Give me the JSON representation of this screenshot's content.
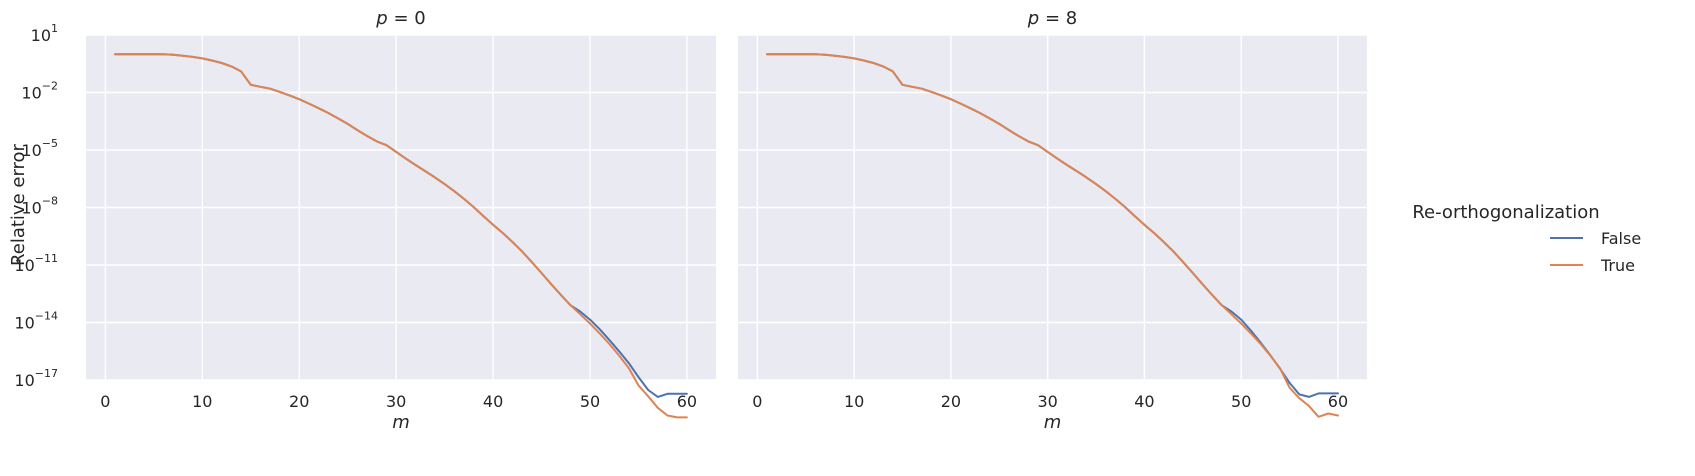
{
  "chart_data": {
    "type": "line",
    "scale_y": "log",
    "grid": true,
    "legend": {
      "title": "Re-orthogonalization",
      "placement": "right",
      "entries": [
        {
          "label": "False",
          "color": "#4c72b0"
        },
        {
          "label": "True",
          "color": "#dd8452"
        }
      ]
    },
    "ylabel": "Relative error",
    "xlabel": "m",
    "xlim": [
      -2,
      63
    ],
    "ylim_exp": [
      -17,
      1
    ],
    "x_ticks": [
      0,
      10,
      20,
      30,
      40,
      50,
      60
    ],
    "y_ticks_exp": [
      1,
      -2,
      -5,
      -8,
      -11,
      -14,
      -17
    ],
    "x": [
      1,
      2,
      3,
      4,
      5,
      6,
      7,
      8,
      9,
      10,
      11,
      12,
      13,
      14,
      15,
      16,
      17,
      18,
      19,
      20,
      21,
      22,
      23,
      24,
      25,
      26,
      27,
      28,
      29,
      30,
      31,
      32,
      33,
      34,
      35,
      36,
      37,
      38,
      39,
      40,
      41,
      42,
      43,
      44,
      45,
      46,
      47,
      48,
      49,
      50,
      51,
      52,
      53,
      54,
      55,
      56,
      57,
      58,
      59,
      60
    ],
    "panels": [
      {
        "title_var": "p",
        "title_value": "= 0",
        "series": [
          {
            "name": "False",
            "log10_values": [
              0,
              0,
              0,
              0,
              0,
              0,
              -0.03,
              -0.08,
              -0.14,
              -0.22,
              -0.33,
              -0.46,
              -0.64,
              -0.9,
              -1.6,
              -1.7,
              -1.8,
              -1.97,
              -2.15,
              -2.35,
              -2.58,
              -2.82,
              -3.07,
              -3.35,
              -3.64,
              -3.96,
              -4.27,
              -4.55,
              -4.75,
              -5.1,
              -5.45,
              -5.78,
              -6.1,
              -6.43,
              -6.78,
              -7.15,
              -7.55,
              -7.98,
              -8.45,
              -8.9,
              -9.33,
              -9.8,
              -10.3,
              -10.85,
              -11.42,
              -12.0,
              -12.56,
              -13.1,
              -13.43,
              -13.85,
              -14.35,
              -14.92,
              -15.5,
              -16.12,
              -16.85,
              -17.52,
              -17.88,
              -17.72,
              -17.72,
              -17.72
            ]
          },
          {
            "name": "True",
            "log10_values": [
              0,
              0,
              0,
              0,
              0,
              0,
              -0.03,
              -0.08,
              -0.14,
              -0.22,
              -0.33,
              -0.46,
              -0.64,
              -0.9,
              -1.6,
              -1.7,
              -1.8,
              -1.97,
              -2.15,
              -2.35,
              -2.58,
              -2.82,
              -3.07,
              -3.35,
              -3.64,
              -3.96,
              -4.27,
              -4.55,
              -4.75,
              -5.1,
              -5.45,
              -5.78,
              -6.1,
              -6.43,
              -6.78,
              -7.15,
              -7.55,
              -7.98,
              -8.45,
              -8.9,
              -9.33,
              -9.8,
              -10.3,
              -10.85,
              -11.42,
              -12.0,
              -12.56,
              -13.1,
              -13.57,
              -14.05,
              -14.57,
              -15.12,
              -15.72,
              -16.38,
              -17.28,
              -17.85,
              -18.45,
              -18.85,
              -18.95,
              -18.95
            ]
          }
        ]
      },
      {
        "title_var": "p",
        "title_value": "= 8",
        "series": [
          {
            "name": "False",
            "log10_values": [
              0,
              0,
              0,
              0,
              0,
              0,
              -0.03,
              -0.08,
              -0.14,
              -0.22,
              -0.33,
              -0.46,
              -0.64,
              -0.9,
              -1.6,
              -1.7,
              -1.8,
              -1.97,
              -2.15,
              -2.35,
              -2.58,
              -2.82,
              -3.07,
              -3.35,
              -3.64,
              -3.96,
              -4.27,
              -4.55,
              -4.75,
              -5.1,
              -5.45,
              -5.78,
              -6.1,
              -6.43,
              -6.78,
              -7.15,
              -7.55,
              -7.98,
              -8.45,
              -8.9,
              -9.33,
              -9.8,
              -10.3,
              -10.85,
              -11.42,
              -12.0,
              -12.56,
              -13.1,
              -13.43,
              -13.85,
              -14.42,
              -15.05,
              -15.7,
              -16.4,
              -17.15,
              -17.75,
              -17.88,
              -17.7,
              -17.7,
              -17.7
            ]
          },
          {
            "name": "True",
            "log10_values": [
              0,
              0,
              0,
              0,
              0,
              0,
              -0.03,
              -0.08,
              -0.14,
              -0.22,
              -0.33,
              -0.46,
              -0.64,
              -0.9,
              -1.6,
              -1.7,
              -1.8,
              -1.97,
              -2.15,
              -2.35,
              -2.58,
              -2.82,
              -3.07,
              -3.35,
              -3.64,
              -3.96,
              -4.27,
              -4.55,
              -4.75,
              -5.1,
              -5.45,
              -5.78,
              -6.1,
              -6.43,
              -6.78,
              -7.15,
              -7.55,
              -7.98,
              -8.45,
              -8.9,
              -9.33,
              -9.8,
              -10.3,
              -10.85,
              -11.42,
              -12.0,
              -12.56,
              -13.1,
              -13.57,
              -14.05,
              -14.57,
              -15.12,
              -15.72,
              -16.38,
              -17.4,
              -17.95,
              -18.35,
              -18.92,
              -18.75,
              -18.85
            ]
          }
        ]
      }
    ]
  }
}
